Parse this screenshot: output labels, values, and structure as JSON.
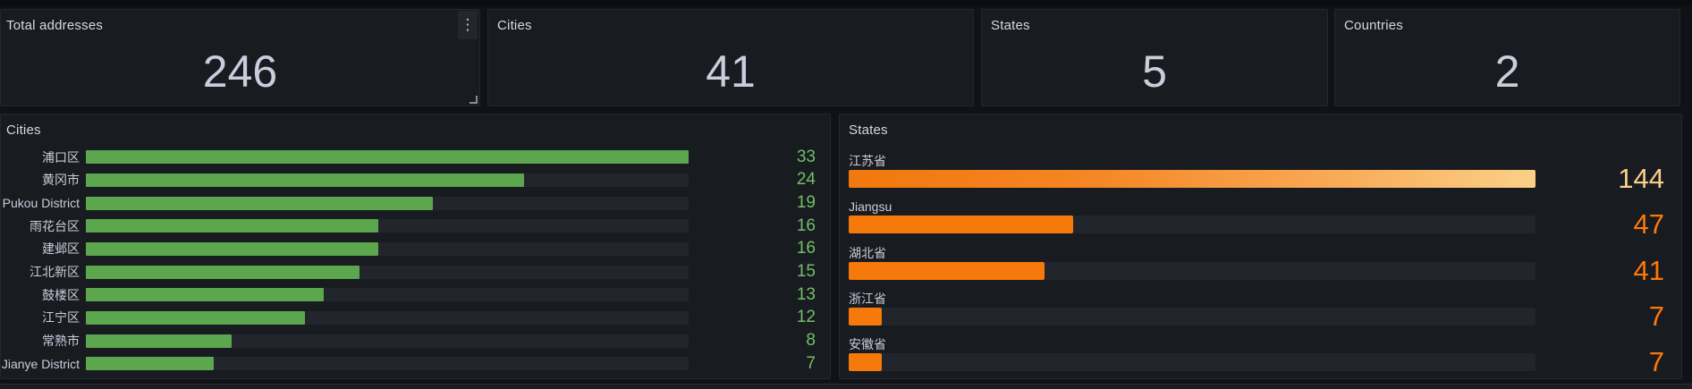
{
  "colors": {
    "page_bg": "#111217",
    "panel_bg": "#181b20",
    "bar_track": "#22252c",
    "green_bar": "#5ca74d",
    "green_value_text": "#73bf69",
    "orange_bar": "#f5790b",
    "orange_value_text": "#ff780a",
    "gradient_bar_end": "#fbd088",
    "gradient_value_text": "#fbcf8a"
  },
  "stats": [
    {
      "title": "Total addresses",
      "value": "246"
    },
    {
      "title": "Cities",
      "value": "41"
    },
    {
      "title": "States",
      "value": "5"
    },
    {
      "title": "Countries",
      "value": "2"
    }
  ],
  "panel_menu": {
    "kebab_icon": "⋮"
  },
  "cities_panel": {
    "title": "Cities",
    "max": 33,
    "rows": [
      {
        "label": "浦口区",
        "value": 33
      },
      {
        "label": "黄冈市",
        "value": 24
      },
      {
        "label": "Pukou District",
        "value": 19
      },
      {
        "label": "雨花台区",
        "value": 16
      },
      {
        "label": "建邺区",
        "value": 16
      },
      {
        "label": "江北新区",
        "value": 15
      },
      {
        "label": "鼓楼区",
        "value": 13
      },
      {
        "label": "江宁区",
        "value": 12
      },
      {
        "label": "常熟市",
        "value": 8
      },
      {
        "label": "Jianye District",
        "value": 7
      }
    ]
  },
  "states_panel": {
    "title": "States",
    "max": 144,
    "rows": [
      {
        "label": "江苏省",
        "value": 144,
        "gradient": true
      },
      {
        "label": "Jiangsu",
        "value": 47
      },
      {
        "label": "湖北省",
        "value": 41
      },
      {
        "label": "浙江省",
        "value": 7
      },
      {
        "label": "安徽省",
        "value": 7
      }
    ]
  },
  "chart_data": [
    {
      "type": "bar",
      "title": "Cities",
      "orientation": "horizontal",
      "categories": [
        "浦口区",
        "黄冈市",
        "Pukou District",
        "雨花台区",
        "建邺区",
        "江北新区",
        "鼓楼区",
        "江宁区",
        "常熟市",
        "Jianye District"
      ],
      "values": [
        33,
        24,
        19,
        16,
        16,
        15,
        13,
        12,
        8,
        7
      ],
      "xlim": [
        0,
        33
      ],
      "bar_color": "#5ca74d",
      "value_labels": "right-aligned green numbers"
    },
    {
      "type": "bar",
      "title": "States",
      "orientation": "horizontal",
      "categories": [
        "江苏省",
        "Jiangsu",
        "湖北省",
        "浙江省",
        "安徽省"
      ],
      "values": [
        144,
        47,
        41,
        7,
        7
      ],
      "xlim": [
        0,
        144
      ],
      "bar_color": "#f5790b",
      "value_labels": "right-aligned orange numbers, max bar uses orange→cream gradient"
    }
  ]
}
